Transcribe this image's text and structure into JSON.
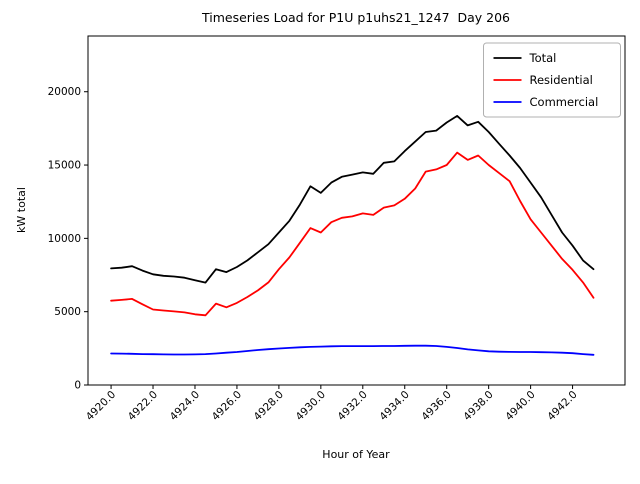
{
  "title": "Timeseries Load for P1U p1uhs21_1247  Day 206",
  "chart_data": {
    "type": "line",
    "title": "Timeseries Load for P1U p1uhs21_1247  Day 206",
    "xlabel": "Hour of Year",
    "ylabel": "kW total",
    "xlim": [
      4918.9,
      4944.5
    ],
    "ylim": [
      0,
      23800
    ],
    "grid": false,
    "legend_position": "upper right",
    "xticks": [
      4920,
      4922,
      4924,
      4926,
      4928,
      4930,
      4932,
      4934,
      4936,
      4938,
      4940,
      4942
    ],
    "xtick_labels": [
      "4920.0",
      "4922.0",
      "4924.0",
      "4926.0",
      "4928.0",
      "4930.0",
      "4932.0",
      "4934.0",
      "4936.0",
      "4938.0",
      "4940.0",
      "4942.0"
    ],
    "yticks": [
      0,
      5000,
      10000,
      15000,
      20000
    ],
    "ytick_labels": [
      "0",
      "5000",
      "10000",
      "15000",
      "20000"
    ],
    "x_step_hours": 0.5,
    "x": [
      4920.0,
      4920.5,
      4921.0,
      4921.5,
      4922.0,
      4922.5,
      4923.0,
      4923.5,
      4924.0,
      4924.5,
      4925.0,
      4925.5,
      4926.0,
      4926.5,
      4927.0,
      4927.5,
      4928.0,
      4928.5,
      4929.0,
      4929.5,
      4930.0,
      4930.5,
      4931.0,
      4931.5,
      4932.0,
      4932.5,
      4933.0,
      4933.5,
      4934.0,
      4934.5,
      4935.0,
      4935.5,
      4936.0,
      4936.5,
      4937.0,
      4937.5,
      4938.0,
      4938.5,
      4939.0,
      4939.5,
      4940.0,
      4940.5,
      4941.0,
      4941.5,
      4942.0,
      4942.5,
      4943.0
    ],
    "series": [
      {
        "name": "Total",
        "color": "#000000",
        "values": [
          7950,
          8000,
          8100,
          7800,
          7550,
          7450,
          7400,
          7320,
          7150,
          6980,
          7900,
          7700,
          8050,
          8500,
          9050,
          9600,
          10400,
          11200,
          12300,
          13550,
          13100,
          13800,
          14200,
          14350,
          14500,
          14400,
          15150,
          15250,
          15950,
          16600,
          17250,
          17350,
          17900,
          18350,
          17700,
          17950,
          17250,
          16450,
          15650,
          14800,
          13800,
          12800,
          11600,
          10400,
          9500,
          8500,
          7900
        ]
      },
      {
        "name": "Residential",
        "color": "#ff0000",
        "values": [
          5750,
          5800,
          5870,
          5500,
          5150,
          5080,
          5020,
          4950,
          4820,
          4750,
          5550,
          5300,
          5600,
          6000,
          6450,
          7000,
          7900,
          8700,
          9700,
          10700,
          10400,
          11100,
          11400,
          11500,
          11700,
          11600,
          12100,
          12250,
          12700,
          13400,
          14550,
          14700,
          15000,
          15850,
          15350,
          15650,
          15000,
          14450,
          13900,
          12550,
          11300,
          10400,
          9500,
          8600,
          7850,
          7000,
          5950
        ]
      },
      {
        "name": "Commercial",
        "color": "#0000ff",
        "values": [
          2150,
          2140,
          2130,
          2110,
          2100,
          2090,
          2080,
          2080,
          2090,
          2110,
          2150,
          2200,
          2250,
          2320,
          2390,
          2440,
          2490,
          2530,
          2570,
          2600,
          2620,
          2640,
          2650,
          2650,
          2650,
          2650,
          2660,
          2660,
          2670,
          2680,
          2680,
          2660,
          2600,
          2520,
          2430,
          2360,
          2300,
          2270,
          2260,
          2250,
          2250,
          2240,
          2220,
          2200,
          2170,
          2110,
          2060
        ]
      }
    ]
  },
  "legend": {
    "items": [
      {
        "label": "Total",
        "color": "#000000"
      },
      {
        "label": "Residential",
        "color": "#ff0000"
      },
      {
        "label": "Commercial",
        "color": "#0000ff"
      }
    ]
  }
}
